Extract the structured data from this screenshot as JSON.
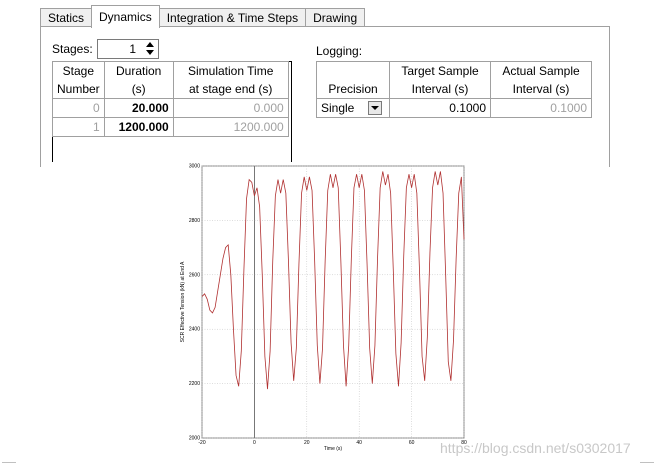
{
  "tabs": [
    {
      "label": "Statics",
      "active": false
    },
    {
      "label": "Dynamics",
      "active": true
    },
    {
      "label": "Integration & Time Steps",
      "active": false
    },
    {
      "label": "Drawing",
      "active": false
    }
  ],
  "stages": {
    "label": "Stages:",
    "value": "1"
  },
  "stage_table": {
    "headers": [
      [
        "Stage",
        "Number"
      ],
      [
        "Duration",
        "(s)"
      ],
      [
        "Simulation Time",
        "at stage end (s)"
      ]
    ],
    "rows": [
      {
        "number": "0",
        "duration": "20.000",
        "sim_time": "0.000"
      },
      {
        "number": "1",
        "duration": "1200.000",
        "sim_time": "1200.000"
      }
    ]
  },
  "logging": {
    "label": "Logging:",
    "headers": [
      [
        "",
        "Precision"
      ],
      [
        "Target Sample",
        "Interval (s)"
      ],
      [
        "Actual Sample",
        "Interval (s)"
      ]
    ],
    "precision": "Single",
    "target_interval": "0.1000",
    "actual_interval": "0.1000"
  },
  "chart_data": {
    "type": "line",
    "title": "",
    "xlabel": "Time (s)",
    "ylabel": "SCR Effective Tension (kN) at End A",
    "xlim": [
      -20,
      80
    ],
    "ylim": [
      2000,
      3000
    ],
    "x_ticks": [
      -20,
      0,
      20,
      40,
      60,
      80
    ],
    "y_ticks": [
      2000,
      2200,
      2400,
      2600,
      2800,
      3000
    ],
    "grid": true,
    "line_color": "#b03030",
    "series": [
      {
        "x": [
          -20,
          -19,
          -18,
          -17,
          -16,
          -15,
          -14,
          -13,
          -12,
          -11,
          -10,
          -9,
          -8,
          -7,
          -6,
          -5,
          -4,
          -3,
          -2,
          -1,
          0,
          1,
          2,
          3,
          4,
          5,
          6,
          7,
          8,
          9,
          10,
          11,
          12,
          13,
          14,
          15,
          16,
          17,
          18,
          19,
          20,
          21,
          22,
          23,
          24,
          25,
          26,
          27,
          28,
          29,
          30,
          31,
          32,
          33,
          34,
          35,
          36,
          37,
          38,
          39,
          40,
          41,
          42,
          43,
          44,
          45,
          46,
          47,
          48,
          49,
          50,
          51,
          52,
          53,
          54,
          55,
          56,
          57,
          58,
          59,
          60,
          61,
          62,
          63,
          64,
          65,
          66,
          67,
          68,
          69,
          70,
          71,
          72,
          73,
          74,
          75,
          76,
          77,
          78,
          79,
          80
        ],
        "y": [
          2520,
          2530,
          2510,
          2470,
          2460,
          2480,
          2540,
          2600,
          2660,
          2700,
          2710,
          2600,
          2400,
          2230,
          2190,
          2320,
          2620,
          2880,
          2950,
          2940,
          2890,
          2920,
          2850,
          2600,
          2300,
          2180,
          2320,
          2650,
          2890,
          2950,
          2900,
          2950,
          2900,
          2650,
          2350,
          2210,
          2330,
          2640,
          2900,
          2960,
          2910,
          2960,
          2910,
          2650,
          2340,
          2200,
          2330,
          2650,
          2910,
          2970,
          2920,
          2970,
          2920,
          2650,
          2340,
          2190,
          2340,
          2660,
          2920,
          2970,
          2920,
          2970,
          2910,
          2640,
          2330,
          2200,
          2340,
          2660,
          2920,
          2980,
          2930,
          2970,
          2900,
          2620,
          2310,
          2190,
          2350,
          2670,
          2920,
          2970,
          2920,
          2970,
          2900,
          2620,
          2300,
          2210,
          2370,
          2680,
          2920,
          2980,
          2930,
          2980,
          2900,
          2600,
          2280,
          2210,
          2360,
          2660,
          2900,
          2960,
          2730
        ]
      }
    ]
  },
  "watermark": "https://blog.csdn.net/s0302017"
}
